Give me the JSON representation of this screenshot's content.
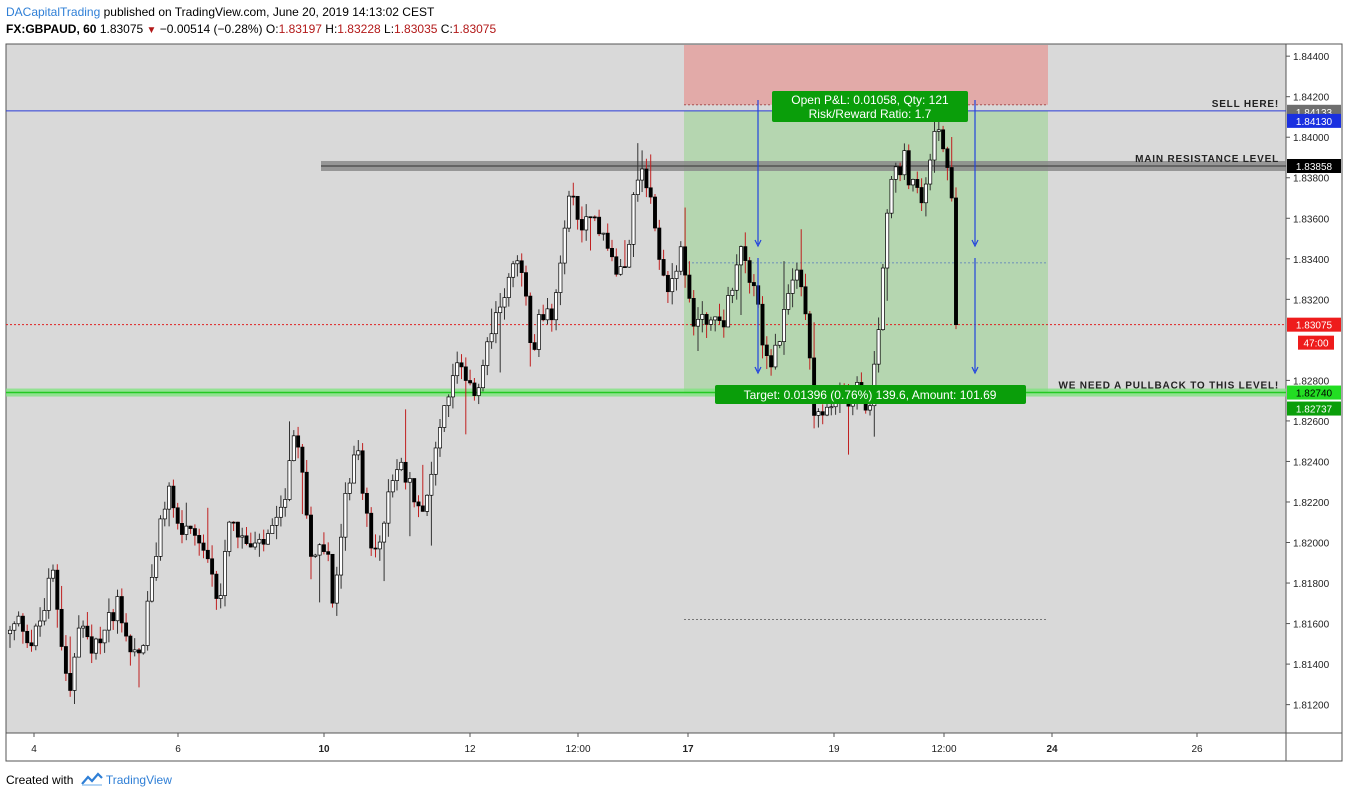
{
  "header": {
    "author": "DACapitalTrading",
    "published_text": "published on TradingView.com, June 20, 2019 14:13:02 CEST",
    "symbol": "FX:GBPAUD, 60",
    "price": "1.83075",
    "change_arrow": "▼",
    "change": "−0.00514 (−0.28%)",
    "o_label": "O:",
    "o_value": "1.83197",
    "h_label": "H:",
    "h_value": "1.83228",
    "l_label": "L:",
    "l_value": "1.83035",
    "c_label": "C:",
    "c_value": "1.83075"
  },
  "footer": {
    "created_with": "Created with",
    "brand": "TradingView"
  },
  "colors": {
    "background": "#d9d9d9",
    "up": "#ffffff",
    "down": "#000000",
    "wick_up": "#333333",
    "wick_down": "#c02020",
    "profit_zone": "#b5d6b0",
    "loss_zone": "#e2aaa8",
    "sell_line": "#2a3cd8",
    "price_line": "#e02020",
    "support_line": "#22c922",
    "resistance_band": "#8a8a8a",
    "badge_green": "#0a9e0a",
    "arrow": "#2244dd"
  },
  "chart_data": {
    "type": "candlestick",
    "symbol": "FX:GBPAUD",
    "timeframe": "60",
    "y_axis": {
      "range": [
        1.8106,
        1.8446
      ],
      "ticks": [
        "1.84400",
        "1.84200",
        "1.84000",
        "1.83800",
        "1.83600",
        "1.83400",
        "1.83200",
        "1.82800",
        "1.82600",
        "1.82400",
        "1.82200",
        "1.82000",
        "1.81800",
        "1.81600",
        "1.81400",
        "1.81200"
      ]
    },
    "x_axis": {
      "ticks": [
        "4",
        "6",
        "10",
        "12",
        "12:00",
        "17",
        "19",
        "12:00",
        "24",
        "26"
      ],
      "bold_ticks": [
        "10",
        "17",
        "24"
      ]
    },
    "price_labels": [
      {
        "value": "1.84133",
        "style": "gray"
      },
      {
        "value": "1.84130",
        "style": "blue"
      },
      {
        "value": "1.83858",
        "style": "black"
      },
      {
        "value": "1.83075",
        "style": "red"
      },
      {
        "value": "47:00",
        "style": "red"
      },
      {
        "value": "1.82740",
        "style": "green"
      },
      {
        "value": "1.82737",
        "style": "darkgreen"
      }
    ],
    "levels": [
      {
        "name": "sell",
        "price": 1.8413,
        "label": "SELL HERE!"
      },
      {
        "name": "resistance",
        "price": 1.83858,
        "label": "MAIN RESISTANCE LEVEL"
      },
      {
        "name": "support",
        "price": 1.8274,
        "label": "WE NEED A PULLBACK TO THIS LEVEL!"
      },
      {
        "name": "last_price",
        "price": 1.83075
      }
    ],
    "position": {
      "entry": 1.8413,
      "stop": 1.8416,
      "target": 1.82737,
      "pnl_text": "Open P&L: 0.01058, Qty: 121",
      "rr_text": "Risk/Reward Ratio: 1.7",
      "target_text": "Target: 0.01396 (0.76%) 139.6, Amount: 101.69"
    },
    "path": [
      [
        0,
        1.8155
      ],
      [
        10,
        1.8162
      ],
      [
        22,
        1.815
      ],
      [
        35,
        1.8168
      ],
      [
        42,
        1.8188
      ],
      [
        50,
        1.8158
      ],
      [
        60,
        1.8125
      ],
      [
        70,
        1.8162
      ],
      [
        82,
        1.8143
      ],
      [
        95,
        1.8158
      ],
      [
        108,
        1.8172
      ],
      [
        120,
        1.8148
      ],
      [
        132,
        1.8145
      ],
      [
        140,
        1.8178
      ],
      [
        150,
        1.8205
      ],
      [
        158,
        1.8228
      ],
      [
        168,
        1.8208
      ],
      [
        180,
        1.8202
      ],
      [
        192,
        1.8195
      ],
      [
        202,
        1.8182
      ],
      [
        210,
        1.8172
      ],
      [
        218,
        1.8215
      ],
      [
        226,
        1.8208
      ],
      [
        236,
        1.8198
      ],
      [
        248,
        1.8196
      ],
      [
        258,
        1.8202
      ],
      [
        268,
        1.8208
      ],
      [
        278,
        1.8232
      ],
      [
        286,
        1.8253
      ],
      [
        292,
        1.8238
      ],
      [
        300,
        1.8198
      ],
      [
        310,
        1.8195
      ],
      [
        318,
        1.8192
      ],
      [
        322,
        1.8165
      ],
      [
        330,
        1.8198
      ],
      [
        338,
        1.823
      ],
      [
        346,
        1.8248
      ],
      [
        356,
        1.8218
      ],
      [
        364,
        1.8188
      ],
      [
        372,
        1.8208
      ],
      [
        380,
        1.8232
      ],
      [
        390,
        1.8238
      ],
      [
        400,
        1.8228
      ],
      [
        410,
        1.8218
      ],
      [
        420,
        1.8228
      ],
      [
        428,
        1.8255
      ],
      [
        438,
        1.8274
      ],
      [
        448,
        1.8288
      ],
      [
        458,
        1.8272
      ],
      [
        468,
        1.8278
      ],
      [
        478,
        1.8298
      ],
      [
        488,
        1.8312
      ],
      [
        498,
        1.8332
      ],
      [
        508,
        1.8338
      ],
      [
        516,
        1.8322
      ],
      [
        522,
        1.8283
      ],
      [
        530,
        1.8318
      ],
      [
        540,
        1.8308
      ],
      [
        548,
        1.8322
      ],
      [
        556,
        1.8365
      ],
      [
        562,
        1.8372
      ],
      [
        572,
        1.8355
      ],
      [
        582,
        1.8368
      ],
      [
        592,
        1.8352
      ],
      [
        602,
        1.834
      ],
      [
        610,
        1.833
      ],
      [
        618,
        1.8348
      ],
      [
        626,
        1.8378
      ],
      [
        632,
        1.8382
      ],
      [
        640,
        1.8368
      ],
      [
        648,
        1.8348
      ],
      [
        656,
        1.8325
      ],
      [
        664,
        1.8335
      ],
      [
        672,
        1.8342
      ],
      [
        680,
        1.8318
      ],
      [
        686,
        1.8305
      ],
      [
        692,
        1.8315
      ],
      [
        700,
        1.8308
      ],
      [
        708,
        1.831
      ],
      [
        716,
        1.8312
      ],
      [
        724,
        1.8332
      ],
      [
        732,
        1.8352
      ],
      [
        740,
        1.8328
      ],
      [
        748,
        1.8315
      ],
      [
        756,
        1.8292
      ],
      [
        762,
        1.8288
      ],
      [
        770,
        1.8298
      ],
      [
        778,
        1.8322
      ],
      [
        786,
        1.8335
      ],
      [
        792,
        1.8322
      ],
      [
        798,
        1.8308
      ],
      [
        804,
        1.8268
      ],
      [
        812,
        1.8262
      ],
      [
        820,
        1.8268
      ],
      [
        830,
        1.8273
      ],
      [
        840,
        1.8268
      ],
      [
        846,
        1.8275
      ],
      [
        852,
        1.8272
      ],
      [
        858,
        1.8262
      ],
      [
        864,
        1.8292
      ],
      [
        870,
        1.8315
      ],
      [
        876,
        1.8352
      ],
      [
        882,
        1.8385
      ],
      [
        888,
        1.8378
      ],
      [
        894,
        1.839
      ],
      [
        900,
        1.8378
      ],
      [
        906,
        1.8372
      ],
      [
        912,
        1.8368
      ],
      [
        918,
        1.8385
      ],
      [
        924,
        1.8398
      ],
      [
        930,
        1.8408
      ],
      [
        936,
        1.839
      ],
      [
        940,
        1.8375
      ],
      [
        944,
        1.8355
      ],
      [
        948,
        1.8318
      ],
      [
        950,
        1.8307
      ]
    ]
  }
}
